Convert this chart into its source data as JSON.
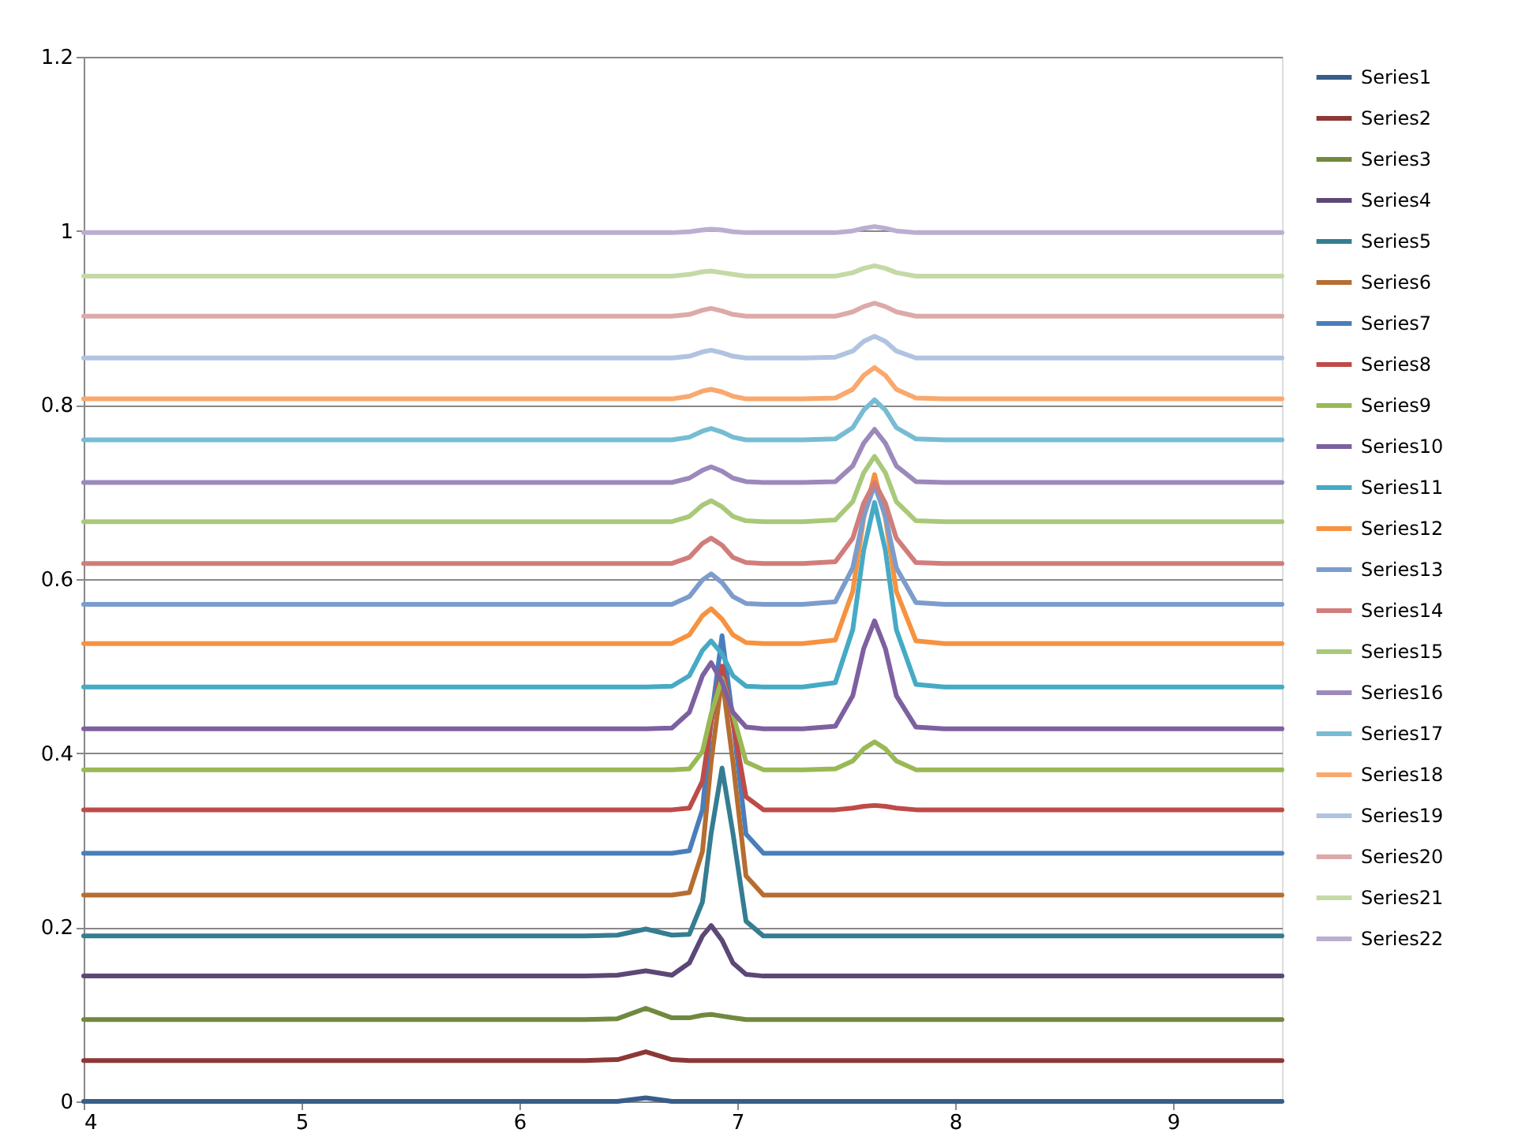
{
  "chart_data": {
    "type": "line",
    "x": [
      4,
      6.3,
      6.45,
      6.58,
      6.7,
      6.78,
      6.84,
      6.88,
      6.93,
      6.98,
      7.04,
      7.12,
      7.3,
      7.45,
      7.53,
      7.58,
      7.63,
      7.68,
      7.73,
      7.82,
      7.95,
      8.2,
      9.5
    ],
    "series": [
      {
        "name": "Series1",
        "color": "#385d8a",
        "values": [
          0,
          0,
          0,
          0.004,
          0,
          0,
          0,
          0,
          0,
          0,
          0,
          0,
          0,
          0,
          0,
          0,
          0,
          0,
          0,
          0,
          0,
          0,
          0
        ]
      },
      {
        "name": "Series2",
        "color": "#8c3836",
        "values": [
          0.047,
          0.047,
          0.048,
          0.057,
          0.048,
          0.047,
          0.047,
          0.047,
          0.047,
          0.047,
          0.047,
          0.047,
          0.047,
          0.047,
          0.047,
          0.047,
          0.047,
          0.047,
          0.047,
          0.047,
          0.047,
          0.047,
          0.047
        ]
      },
      {
        "name": "Series3",
        "color": "#71893f",
        "values": [
          0.094,
          0.094,
          0.095,
          0.107,
          0.096,
          0.096,
          0.099,
          0.1,
          0.098,
          0.096,
          0.094,
          0.094,
          0.094,
          0.094,
          0.094,
          0.094,
          0.094,
          0.094,
          0.094,
          0.094,
          0.094,
          0.094,
          0.094
        ]
      },
      {
        "name": "Series4",
        "color": "#5c4776",
        "values": [
          0.144,
          0.144,
          0.145,
          0.15,
          0.145,
          0.159,
          0.19,
          0.202,
          0.185,
          0.159,
          0.146,
          0.144,
          0.144,
          0.144,
          0.144,
          0.144,
          0.144,
          0.144,
          0.144,
          0.144,
          0.144,
          0.144,
          0.144
        ]
      },
      {
        "name": "Series5",
        "color": "#357d91",
        "values": [
          0.19,
          0.19,
          0.191,
          0.198,
          0.191,
          0.192,
          0.229,
          0.308,
          0.383,
          0.308,
          0.207,
          0.19,
          0.19,
          0.19,
          0.19,
          0.19,
          0.19,
          0.19,
          0.19,
          0.19,
          0.19,
          0.19,
          0.19
        ]
      },
      {
        "name": "Series6",
        "color": "#b66d31",
        "values": [
          0.237,
          0.237,
          0.237,
          0.237,
          0.237,
          0.24,
          0.287,
          0.39,
          0.487,
          0.39,
          0.259,
          0.237,
          0.237,
          0.237,
          0.237,
          0.237,
          0.237,
          0.237,
          0.237,
          0.237,
          0.237,
          0.237,
          0.237
        ]
      },
      {
        "name": "Series7",
        "color": "#4a7ebb",
        "values": [
          0.285,
          0.285,
          0.285,
          0.285,
          0.285,
          0.288,
          0.335,
          0.438,
          0.535,
          0.438,
          0.307,
          0.285,
          0.285,
          0.285,
          0.285,
          0.285,
          0.285,
          0.285,
          0.285,
          0.285,
          0.285,
          0.285,
          0.285
        ]
      },
      {
        "name": "Series8",
        "color": "#be4b48",
        "values": [
          0.335,
          0.335,
          0.335,
          0.335,
          0.335,
          0.337,
          0.368,
          0.436,
          0.5,
          0.436,
          0.35,
          0.335,
          0.335,
          0.335,
          0.337,
          0.339,
          0.34,
          0.339,
          0.337,
          0.335,
          0.335,
          0.335,
          0.335
        ]
      },
      {
        "name": "Series9",
        "color": "#98b954",
        "values": [
          0.381,
          0.381,
          0.381,
          0.381,
          0.381,
          0.382,
          0.402,
          0.445,
          0.486,
          0.445,
          0.39,
          0.381,
          0.381,
          0.382,
          0.391,
          0.405,
          0.413,
          0.405,
          0.391,
          0.381,
          0.381,
          0.381,
          0.381
        ]
      },
      {
        "name": "Series10",
        "color": "#7d60a0",
        "values": [
          0.428,
          0.428,
          0.428,
          0.428,
          0.429,
          0.447,
          0.489,
          0.504,
          0.482,
          0.447,
          0.43,
          0.428,
          0.428,
          0.431,
          0.466,
          0.52,
          0.552,
          0.52,
          0.466,
          0.43,
          0.428,
          0.428,
          0.428
        ]
      },
      {
        "name": "Series11",
        "color": "#46aac5",
        "values": [
          0.476,
          0.476,
          0.476,
          0.476,
          0.477,
          0.489,
          0.518,
          0.529,
          0.514,
          0.489,
          0.477,
          0.476,
          0.476,
          0.481,
          0.542,
          0.633,
          0.688,
          0.633,
          0.542,
          0.479,
          0.476,
          0.476,
          0.476
        ]
      },
      {
        "name": "Series12",
        "color": "#f69240",
        "values": [
          0.526,
          0.526,
          0.526,
          0.526,
          0.526,
          0.536,
          0.558,
          0.566,
          0.554,
          0.536,
          0.527,
          0.526,
          0.526,
          0.53,
          0.586,
          0.67,
          0.72,
          0.67,
          0.586,
          0.529,
          0.526,
          0.526,
          0.526
        ]
      },
      {
        "name": "Series13",
        "color": "#7c9ccc",
        "values": [
          0.571,
          0.571,
          0.571,
          0.571,
          0.571,
          0.58,
          0.599,
          0.606,
          0.596,
          0.58,
          0.572,
          0.571,
          0.571,
          0.574,
          0.613,
          0.672,
          0.708,
          0.672,
          0.613,
          0.573,
          0.571,
          0.571,
          0.571
        ]
      },
      {
        "name": "Series14",
        "color": "#d07d7b",
        "values": [
          0.618,
          0.618,
          0.618,
          0.618,
          0.618,
          0.625,
          0.641,
          0.647,
          0.639,
          0.625,
          0.619,
          0.618,
          0.618,
          0.62,
          0.647,
          0.687,
          0.711,
          0.687,
          0.647,
          0.619,
          0.618,
          0.618,
          0.618
        ]
      },
      {
        "name": "Series15",
        "color": "#a9c97a",
        "values": [
          0.666,
          0.666,
          0.666,
          0.666,
          0.666,
          0.672,
          0.685,
          0.69,
          0.683,
          0.672,
          0.667,
          0.666,
          0.666,
          0.668,
          0.689,
          0.722,
          0.741,
          0.722,
          0.689,
          0.667,
          0.666,
          0.666,
          0.666
        ]
      },
      {
        "name": "Series16",
        "color": "#9c89bb",
        "values": [
          0.711,
          0.711,
          0.711,
          0.711,
          0.711,
          0.716,
          0.725,
          0.729,
          0.724,
          0.716,
          0.712,
          0.711,
          0.711,
          0.712,
          0.73,
          0.756,
          0.772,
          0.756,
          0.73,
          0.712,
          0.711,
          0.711,
          0.711
        ]
      },
      {
        "name": "Series17",
        "color": "#77bcd3",
        "values": [
          0.76,
          0.76,
          0.76,
          0.76,
          0.76,
          0.763,
          0.77,
          0.773,
          0.769,
          0.763,
          0.76,
          0.76,
          0.76,
          0.761,
          0.774,
          0.794,
          0.806,
          0.794,
          0.774,
          0.761,
          0.76,
          0.76,
          0.76
        ]
      },
      {
        "name": "Series18",
        "color": "#f9a86e",
        "values": [
          0.807,
          0.807,
          0.807,
          0.807,
          0.807,
          0.81,
          0.816,
          0.818,
          0.815,
          0.81,
          0.807,
          0.807,
          0.807,
          0.808,
          0.818,
          0.834,
          0.843,
          0.834,
          0.818,
          0.808,
          0.807,
          0.807,
          0.807
        ]
      },
      {
        "name": "Series19",
        "color": "#b0c3e0",
        "values": [
          0.854,
          0.854,
          0.854,
          0.854,
          0.854,
          0.856,
          0.861,
          0.863,
          0.86,
          0.856,
          0.854,
          0.854,
          0.854,
          0.855,
          0.862,
          0.873,
          0.879,
          0.873,
          0.862,
          0.854,
          0.854,
          0.854,
          0.854
        ]
      },
      {
        "name": "Series20",
        "color": "#dcaaa9",
        "values": [
          0.902,
          0.902,
          0.902,
          0.902,
          0.902,
          0.904,
          0.909,
          0.911,
          0.908,
          0.904,
          0.902,
          0.902,
          0.902,
          0.902,
          0.907,
          0.913,
          0.917,
          0.913,
          0.907,
          0.902,
          0.902,
          0.902,
          0.902
        ]
      },
      {
        "name": "Series21",
        "color": "#c5d9a7",
        "values": [
          0.948,
          0.948,
          0.948,
          0.948,
          0.948,
          0.95,
          0.953,
          0.954,
          0.952,
          0.95,
          0.948,
          0.948,
          0.948,
          0.948,
          0.952,
          0.957,
          0.96,
          0.957,
          0.952,
          0.948,
          0.948,
          0.948,
          0.948
        ]
      },
      {
        "name": "Series22",
        "color": "#bbaed1",
        "values": [
          0.998,
          0.998,
          0.998,
          0.998,
          0.998,
          0.999,
          1.001,
          1.002,
          1.001,
          0.999,
          0.998,
          0.998,
          0.998,
          0.998,
          1.0,
          1.003,
          1.005,
          1.003,
          1.0,
          0.998,
          0.998,
          0.998,
          0.998
        ]
      }
    ],
    "xlim": [
      4,
      9.5
    ],
    "xticks": [
      4,
      5,
      6,
      7,
      8,
      9
    ],
    "ylim": [
      0,
      1.2
    ],
    "yticks": [
      0,
      0.2,
      0.4,
      0.6,
      0.8,
      1,
      1.2
    ],
    "grid": "y",
    "legend": "right"
  }
}
